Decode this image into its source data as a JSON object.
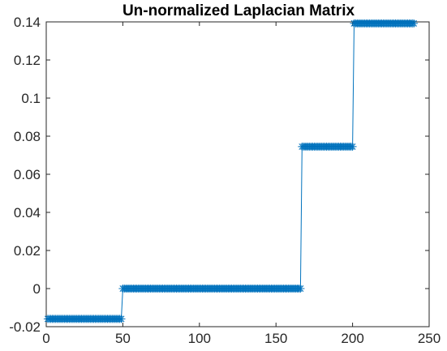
{
  "chart_data": {
    "type": "line",
    "title": "Un-normalized Laplacian Matrix",
    "xlabel": "",
    "ylabel": "",
    "xlim": [
      0,
      250
    ],
    "ylim": [
      -0.02,
      0.14
    ],
    "grid": false,
    "box": true,
    "marker": "asterisk",
    "color": "#0072BD",
    "xticks": [
      0,
      50,
      100,
      150,
      200,
      250
    ],
    "xtick_labels": [
      "0",
      "50",
      "100",
      "150",
      "200",
      "250"
    ],
    "yticks": [
      -0.02,
      0,
      0.02,
      0.04,
      0.06,
      0.08,
      0.1,
      0.12,
      0.14
    ],
    "ytick_labels": [
      "-0.02",
      "0",
      "0.02",
      "0.04",
      "0.06",
      "0.08",
      "0.1",
      "0.12",
      "0.14"
    ],
    "segments": [
      {
        "x_start": 1,
        "x_end": 49,
        "y": -0.0159
      },
      {
        "x_start": 50,
        "x_end": 166,
        "y": 0.0
      },
      {
        "x_start": 167,
        "x_end": 200,
        "y": 0.0745
      },
      {
        "x_start": 201,
        "x_end": 240,
        "y": 0.1392
      }
    ]
  }
}
